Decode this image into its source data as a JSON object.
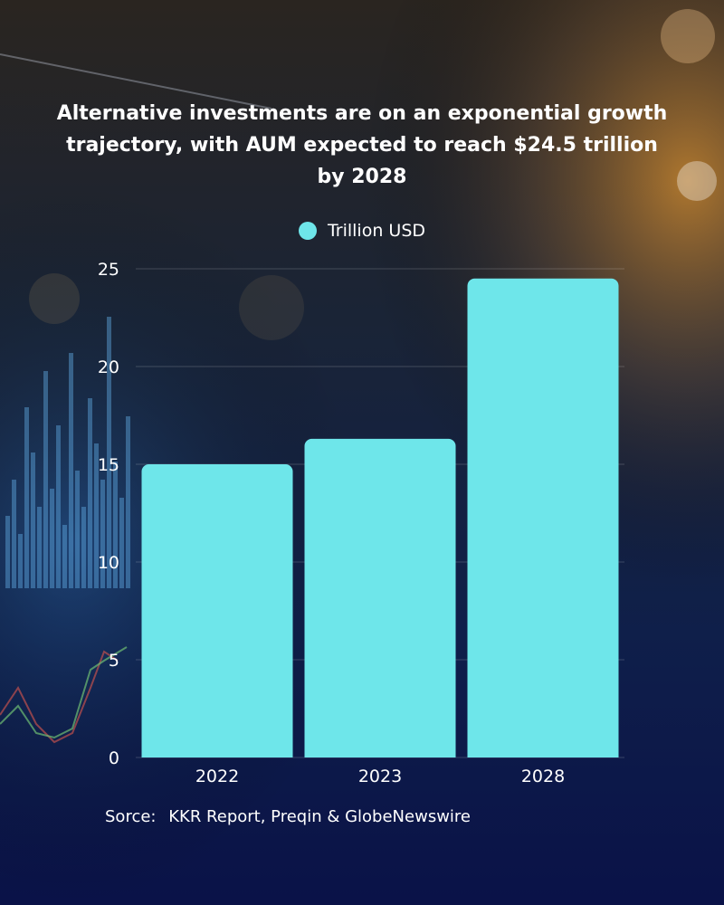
{
  "header": {
    "title": "Alternative investments are on an exponential growth trajectory, with AUM expected to reach $24.5 trillion by 2028"
  },
  "legend": {
    "label": "Trillion USD",
    "color": "#6ee6ea"
  },
  "footer": {
    "source_label": "Sorce:",
    "source_text": "KKR Report, Preqin & GlobeNewswire"
  },
  "chart_data": {
    "type": "bar",
    "title": "Alternative investments are on an exponential growth trajectory, with AUM expected to reach $24.5 trillion by 2028",
    "categories": [
      "2022",
      "2023",
      "2028"
    ],
    "series": [
      {
        "name": "Trillion USD",
        "values": [
          15,
          16.3,
          24.5
        ]
      }
    ],
    "ylim": [
      0,
      25
    ],
    "yticks": [
      0,
      5,
      10,
      15,
      20,
      25
    ],
    "grid": true,
    "legend": "top-center",
    "bar_color": "#6ee6ea"
  }
}
